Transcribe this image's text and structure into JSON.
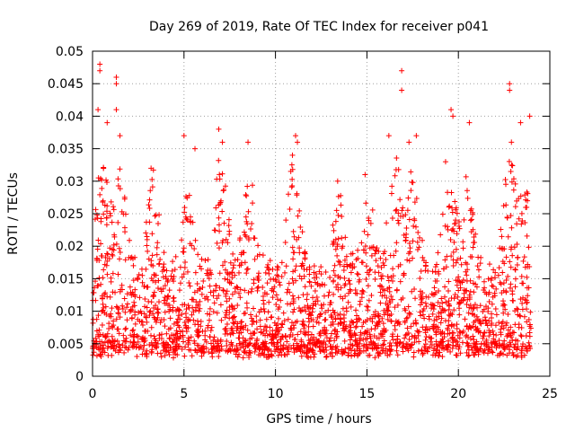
{
  "chart_data": {
    "type": "scatter",
    "title": "Day 269 of 2019, Rate Of TEC Index for receiver p041",
    "xlabel": "GPS time / hours",
    "ylabel": "ROTI / TECUs",
    "xlim": [
      0,
      25
    ],
    "ylim": [
      0,
      0.05
    ],
    "xticks": [
      0,
      5,
      10,
      15,
      20,
      25
    ],
    "xtick_labels": [
      "0",
      "5",
      "10",
      "15",
      "20",
      "25"
    ],
    "yticks": [
      0,
      0.005,
      0.01,
      0.015,
      0.02,
      0.025,
      0.03,
      0.035,
      0.04,
      0.045,
      0.05
    ],
    "ytick_labels": [
      "0",
      "0.005",
      "0.01",
      "0.015",
      "0.02",
      "0.025",
      "0.03",
      "0.035",
      "0.04",
      "0.045",
      "0.05"
    ],
    "grid": true,
    "marker": "+",
    "series": [
      {
        "name": "ROTI",
        "color": "#ff0000",
        "x_range": [
          0,
          24
        ],
        "typical_range": [
          0.003,
          0.015
        ],
        "spike_points": [
          [
            0.4,
            0.048
          ],
          [
            0.4,
            0.047
          ],
          [
            0.3,
            0.041
          ],
          [
            0.8,
            0.039
          ],
          [
            1.3,
            0.046
          ],
          [
            1.3,
            0.045
          ],
          [
            1.3,
            0.041
          ],
          [
            1.5,
            0.037
          ],
          [
            3.2,
            0.032
          ],
          [
            5.0,
            0.037
          ],
          [
            5.6,
            0.035
          ],
          [
            6.9,
            0.038
          ],
          [
            7.1,
            0.036
          ],
          [
            8.5,
            0.036
          ],
          [
            11.1,
            0.037
          ],
          [
            11.2,
            0.036
          ],
          [
            13.4,
            0.03
          ],
          [
            14.9,
            0.031
          ],
          [
            16.2,
            0.037
          ],
          [
            16.9,
            0.047
          ],
          [
            16.9,
            0.044
          ],
          [
            17.3,
            0.036
          ],
          [
            17.7,
            0.037
          ],
          [
            19.3,
            0.033
          ],
          [
            19.6,
            0.041
          ],
          [
            19.7,
            0.04
          ],
          [
            20.6,
            0.039
          ],
          [
            22.8,
            0.045
          ],
          [
            22.8,
            0.044
          ],
          [
            22.9,
            0.036
          ],
          [
            23.4,
            0.039
          ],
          [
            23.9,
            0.04
          ]
        ]
      }
    ]
  }
}
